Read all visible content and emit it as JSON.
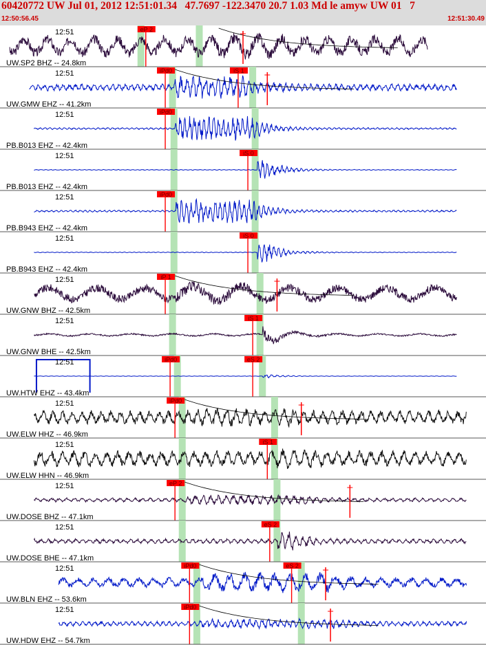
{
  "header": {
    "title": "60420772 UW Jul 01, 2012 12:51:01.34   47.7697 -122.3470 20.7 1.03 Md le amyw UW 01   7",
    "start_time": "12:50:56.45",
    "end_time": "12:51:30.49"
  },
  "colors": {
    "header_bg": "#dcdcdc",
    "header_text": "#cc0000",
    "pick_fill": "#ff0000",
    "window_fill": "#b5e3b5",
    "divider": "#555555"
  },
  "chart_data": {
    "type": "seismogram",
    "time_window": {
      "start": "12:50:56.45",
      "end": "12:51:30.49"
    },
    "tick_label": "12:51",
    "traces": [
      {
        "label": "UW.SP2 BHZ -- 24.8km",
        "color": "#2a0a3a",
        "amplitude": 0.55,
        "period": 34,
        "signal_start": 0.02,
        "signal_end": 0.88,
        "burst_at": 0.45,
        "burst_gain": 1.2,
        "fall_at": 0.56,
        "windows": [
          0.29,
          0.41
        ],
        "picks": [
          {
            "label": "eP 2",
            "at": 0.3
          }
        ],
        "extra_marks": [
          0.5
        ],
        "decay": true
      },
      {
        "label": "UW.GMW EHZ -- 41.2km",
        "color": "#0018c8",
        "amplitude": 0.18,
        "period": 9,
        "signal_start": 0.06,
        "signal_end": 0.94,
        "burst_at": 0.36,
        "burst_gain": 3.2,
        "fall_at": 0.5,
        "windows": [
          0.355,
          0.52
        ],
        "picks": [
          {
            "label": "iPd0",
            "at": 0.34
          },
          {
            "label": "iS 1",
            "at": 0.49
          }
        ],
        "extra_marks": [
          0.55
        ],
        "decay": true
      },
      {
        "label": "PB.B013 EHZ -- 42.4km",
        "color": "#0018c8",
        "amplitude": 0.05,
        "period": 7,
        "signal_start": 0.07,
        "signal_end": 0.94,
        "burst_at": 0.36,
        "burst_gain": 12,
        "fall_at": 0.52,
        "windows": [
          0.358,
          0.525
        ],
        "picks": [
          {
            "label": "iPd0",
            "at": 0.34
          }
        ],
        "extra_marks": [],
        "decay": false
      },
      {
        "label": "PB.B013 EHZ -- 42.4km",
        "color": "#0018c8",
        "amplitude": 0.02,
        "period": 7,
        "signal_start": 0.07,
        "signal_end": 0.94,
        "burst_at": 0.53,
        "burst_gain": 25,
        "fall_at": 0.55,
        "windows": [
          0.358,
          0.525
        ],
        "picks": [
          {
            "label": "iS 0",
            "at": 0.51
          }
        ],
        "extra_marks": [],
        "decay": false
      },
      {
        "label": "PB.B943 EHZ -- 42.4km",
        "color": "#0018c8",
        "amplitude": 0.05,
        "period": 7,
        "signal_start": 0.07,
        "signal_end": 0.94,
        "burst_at": 0.36,
        "burst_gain": 12,
        "fall_at": 0.52,
        "windows": [
          0.358,
          0.525
        ],
        "picks": [
          {
            "label": "iPd0",
            "at": 0.34
          }
        ],
        "extra_marks": [],
        "decay": false
      },
      {
        "label": "PB.B943 EHZ -- 42.4km",
        "color": "#0018c8",
        "amplitude": 0.02,
        "period": 7,
        "signal_start": 0.07,
        "signal_end": 0.94,
        "burst_at": 0.53,
        "burst_gain": 25,
        "fall_at": 0.55,
        "windows": [
          0.358,
          0.525
        ],
        "picks": [
          {
            "label": "iS 0",
            "at": 0.51
          }
        ],
        "extra_marks": [],
        "decay": false
      },
      {
        "label": "UW.GNW BHZ -- 42.5km",
        "color": "#2a0a3a",
        "amplitude": 0.45,
        "period": 70,
        "signal_start": 0.07,
        "signal_end": 0.94,
        "burst_at": 0.36,
        "burst_gain": 1.3,
        "fall_at": 0.5,
        "windows": [
          0.355,
          0.535
        ],
        "picks": [
          {
            "label": "iP 1",
            "at": 0.34
          }
        ],
        "extra_marks": [
          0.57
        ],
        "decay": true
      },
      {
        "label": "UW.GNW BHE -- 42.5km",
        "color": "#2a0a3a",
        "amplitude": 0.08,
        "period": 60,
        "signal_start": 0.07,
        "signal_end": 0.94,
        "burst_at": 0.54,
        "burst_gain": 8,
        "fall_at": 0.55,
        "windows": [
          0.355,
          0.535
        ],
        "picks": [
          {
            "label": "iS 1",
            "at": 0.52
          }
        ],
        "extra_marks": [],
        "decay": false
      },
      {
        "label": "UW.HTW EHZ -- 43.4km",
        "color": "#0018c8",
        "amplitude": 0.01,
        "period": 8,
        "signal_start": 0.07,
        "signal_end": 0.94,
        "burst_at": 0.54,
        "burst_gain": 10,
        "fall_at": 0.55,
        "windows": [
          0.365,
          0.54
        ],
        "picks": [
          {
            "label": "iPd0",
            "at": 0.35
          },
          {
            "label": "eS 2",
            "at": 0.52
          }
        ],
        "extra_marks": [],
        "decay": false,
        "boxcar": [
          0.075,
          0.185
        ]
      },
      {
        "label": "UW.ELW HHZ -- 46.9km",
        "color": "#111111",
        "amplitude": 0.35,
        "period": 14,
        "signal_start": 0.07,
        "signal_end": 0.96,
        "burst_at": 0.38,
        "burst_gain": 1.3,
        "fall_at": 0.6,
        "windows": [
          0.375,
          0.565
        ],
        "picks": [
          {
            "label": "iPd0",
            "at": 0.36
          }
        ],
        "extra_marks": [
          0.62
        ],
        "decay": true
      },
      {
        "label": "UW.ELW HHN -- 46.9km",
        "color": "#111111",
        "amplitude": 0.4,
        "period": 16,
        "signal_start": 0.07,
        "signal_end": 0.96,
        "burst_at": 0.57,
        "burst_gain": 1.3,
        "fall_at": 0.62,
        "windows": [
          0.375,
          0.565
        ],
        "picks": [
          {
            "label": "iS 1",
            "at": 0.55
          }
        ],
        "extra_marks": [],
        "decay": false
      },
      {
        "label": "UW.DOSE BHZ -- 47.1km",
        "color": "#2a0a3a",
        "amplitude": 0.1,
        "period": 11,
        "signal_start": 0.07,
        "signal_end": 0.96,
        "burst_at": 0.38,
        "burst_gain": 2.5,
        "fall_at": 0.62,
        "windows": [
          0.375,
          0.57
        ],
        "picks": [
          {
            "label": "eP 2",
            "at": 0.36
          }
        ],
        "extra_marks": [
          0.72
        ],
        "decay": true
      },
      {
        "label": "UW.DOSE BHE -- 47.1km",
        "color": "#2a0a3a",
        "amplitude": 0.12,
        "period": 10,
        "signal_start": 0.07,
        "signal_end": 0.96,
        "burst_at": 0.57,
        "burst_gain": 4,
        "fall_at": 0.6,
        "windows": [
          0.375,
          0.57
        ],
        "picks": [
          {
            "label": "eS 2",
            "at": 0.555
          }
        ],
        "extra_marks": [],
        "decay": false
      },
      {
        "label": "UW.BLN EHZ -- 53.6km",
        "color": "#0018c8",
        "amplitude": 0.25,
        "period": 22,
        "signal_start": 0.12,
        "signal_end": 0.96,
        "burst_at": 0.41,
        "burst_gain": 2,
        "fall_at": 0.68,
        "windows": [
          0.405,
          0.62
        ],
        "picks": [
          {
            "label": "iPd0",
            "at": 0.39
          },
          {
            "label": "eS 2",
            "at": 0.6
          }
        ],
        "extra_marks": [
          0.67
        ],
        "decay": true
      },
      {
        "label": "UW.HDW EHZ -- 54.7km",
        "color": "#0018c8",
        "amplitude": 0.12,
        "period": 9,
        "signal_start": 0.12,
        "signal_end": 0.96,
        "burst_at": 0.41,
        "burst_gain": 2,
        "fall_at": 0.7,
        "windows": [
          0.405,
          0.62
        ],
        "picks": [
          {
            "label": "iPd0",
            "at": 0.39
          }
        ],
        "extra_marks": [
          0.68
        ],
        "decay": true
      }
    ]
  }
}
